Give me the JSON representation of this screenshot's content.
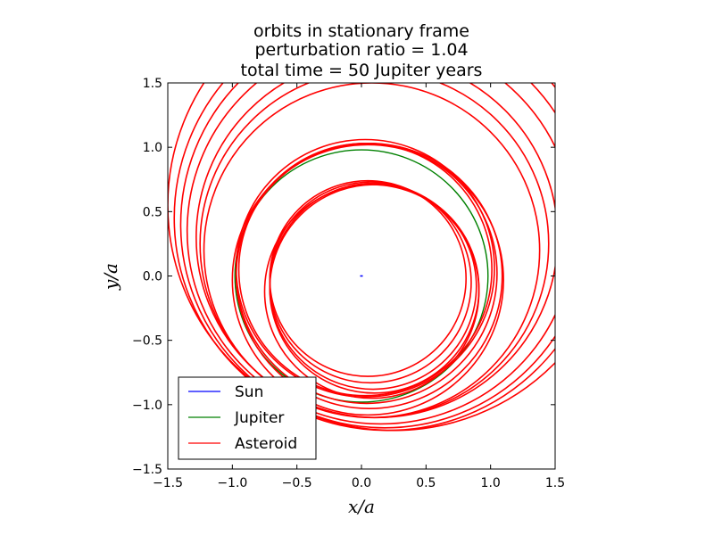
{
  "chart_data": {
    "type": "line",
    "title_lines": [
      "orbits in stationary frame",
      "perturbation ratio = 1.04",
      "total time = 50 Jupiter years"
    ],
    "xlabel": "x/a",
    "ylabel": "y/a",
    "xlim": [
      -1.5,
      1.5
    ],
    "ylim": [
      -1.5,
      1.5
    ],
    "xticks": [
      -1.5,
      -1.0,
      -0.5,
      0.0,
      0.5,
      1.0,
      1.5
    ],
    "xtick_labels": [
      "−1.5",
      "−1.0",
      "−0.5",
      "0.0",
      "0.5",
      "1.0",
      "1.5"
    ],
    "yticks": [
      -1.5,
      -1.0,
      -0.5,
      0.0,
      0.5,
      1.0,
      1.5
    ],
    "ytick_labels": [
      "−1.5",
      "−1.0",
      "−0.5",
      "0.0",
      "0.5",
      "1.0",
      "1.5"
    ],
    "grid": false,
    "legend_position": "lower-left",
    "series": [
      {
        "name": "Sun",
        "color": "#0000ff",
        "kind": "point-orbit",
        "center": [
          0.0,
          0.0
        ],
        "radius": 0.0
      },
      {
        "name": "Jupiter",
        "color": "#008000",
        "kind": "circle",
        "center": [
          0.0,
          0.0
        ],
        "radius": 0.98
      },
      {
        "name": "Asteroid",
        "color": "#ff0000",
        "kind": "circles",
        "orbits": [
          {
            "center": [
              0.05,
              -0.02
            ],
            "radius": 0.76
          },
          {
            "center": [
              0.07,
              -0.05
            ],
            "radius": 0.78
          },
          {
            "center": [
              0.09,
              -0.08
            ],
            "radius": 0.8
          },
          {
            "center": [
              0.1,
              -0.1
            ],
            "radius": 0.81
          },
          {
            "center": [
              0.08,
              -0.12
            ],
            "radius": 0.83
          },
          {
            "center": [
              0.03,
              0.05
            ],
            "radius": 0.98
          },
          {
            "center": [
              0.04,
              0.02
            ],
            "radius": 1.01
          },
          {
            "center": [
              0.06,
              0.0
            ],
            "radius": 1.03
          },
          {
            "center": [
              0.05,
              -0.03
            ],
            "radius": 1.05
          },
          {
            "center": [
              0.03,
              0.06
            ],
            "radius": 1.0
          },
          {
            "center": [
              0.08,
              0.2
            ],
            "radius": 1.3
          },
          {
            "center": [
              0.1,
              0.25
            ],
            "radius": 1.35
          },
          {
            "center": [
              0.12,
              0.3
            ],
            "radius": 1.4
          },
          {
            "center": [
              0.15,
              0.35
            ],
            "radius": 1.5
          },
          {
            "center": [
              0.18,
              0.4
            ],
            "radius": 1.58
          },
          {
            "center": [
              0.2,
              0.45
            ],
            "radius": 1.65
          },
          {
            "center": [
              0.25,
              0.55
            ],
            "radius": 1.75
          }
        ]
      }
    ]
  }
}
